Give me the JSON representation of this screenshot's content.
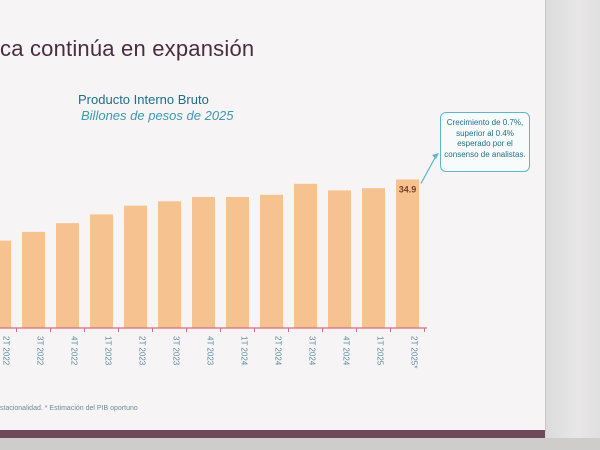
{
  "slide": {
    "title": "ca continúa en expansión",
    "footnote": "stacionalidad. * Estimación del PIB oportuno",
    "callout": "Crecimiento de 0.7%, superior al 0.4% esperado por el consenso de analistas."
  },
  "colors": {
    "bar": "#f6c28f",
    "axis": "#d36f7f",
    "title": "#1f6f8a",
    "tick": "#5a8aa0"
  },
  "chart_data": {
    "type": "bar",
    "title": "Producto Interno Bruto",
    "subtitle": "Billones de pesos de 2025",
    "categories": [
      "2T 2022",
      "3T 2022",
      "4T 2022",
      "1T 2023",
      "2T 2023",
      "3T 2023",
      "4T 2023",
      "1T 2024",
      "2T 2024",
      "3T 2024",
      "4T 2024",
      "1T 2025",
      "2T 2025*"
    ],
    "values": [
      33.5,
      33.7,
      33.9,
      34.1,
      34.3,
      34.4,
      34.5,
      34.5,
      34.55,
      34.8,
      34.65,
      34.7,
      34.9
    ],
    "data_labels": [
      {
        "index": 12,
        "text": "34.9"
      }
    ],
    "ylim": [
      31.5,
      35.3
    ],
    "grid": false,
    "legend": "none"
  }
}
